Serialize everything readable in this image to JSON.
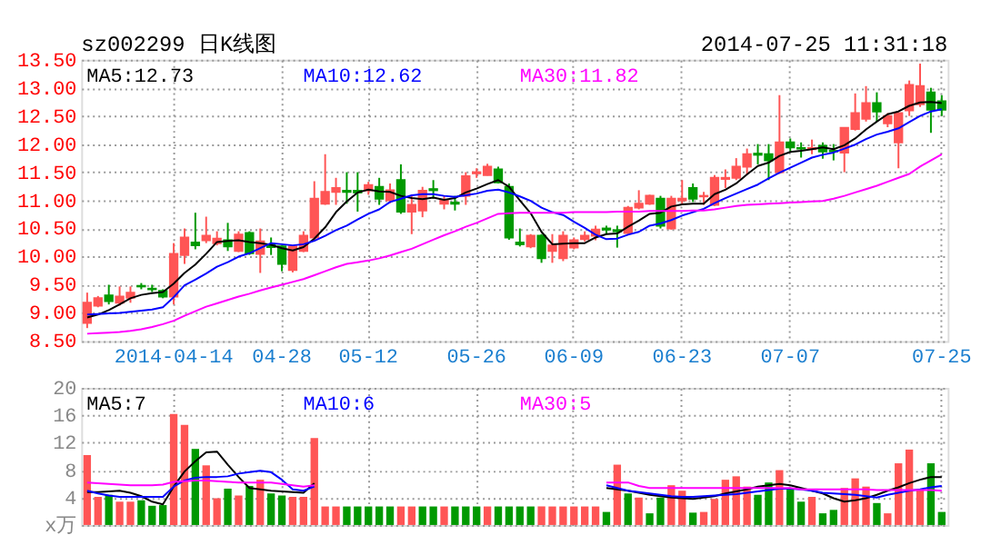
{
  "chart_data": [
    {
      "type": "candlestick",
      "title": "sz002299 日K线图",
      "annotations": [
        "2014-07-25 11:31:18"
      ],
      "categories": [
        null,
        null,
        null,
        null,
        null,
        null,
        null,
        null,
        "2014-04-14",
        null,
        null,
        null,
        null,
        null,
        null,
        null,
        null,
        null,
        "04-28",
        null,
        null,
        null,
        null,
        null,
        null,
        null,
        "05-12",
        null,
        null,
        null,
        null,
        null,
        null,
        null,
        null,
        null,
        "05-26",
        null,
        null,
        null,
        null,
        null,
        null,
        null,
        null,
        "06-09",
        null,
        null,
        null,
        null,
        null,
        null,
        null,
        null,
        null,
        "06-23",
        null,
        null,
        null,
        null,
        null,
        null,
        null,
        null,
        null,
        "07-07",
        null,
        null,
        null,
        null,
        null,
        null,
        null,
        null,
        null,
        null,
        null,
        null,
        null,
        "07-25"
      ],
      "ohlc": [
        [
          8.82,
          9.36,
          8.73,
          9.18
        ],
        [
          9.13,
          9.3,
          9.1,
          9.26
        ],
        [
          9.31,
          9.5,
          9.15,
          9.21
        ],
        [
          9.18,
          9.47,
          9.13,
          9.29
        ],
        [
          9.27,
          9.47,
          9.18,
          9.36
        ],
        [
          9.48,
          9.53,
          9.42,
          9.47
        ],
        [
          9.43,
          9.5,
          9.37,
          9.42
        ],
        [
          9.39,
          9.42,
          9.26,
          9.29
        ],
        [
          9.29,
          10.24,
          9.15,
          10.05
        ],
        [
          10.03,
          10.5,
          9.87,
          10.34
        ],
        [
          10.25,
          10.78,
          10.13,
          10.2
        ],
        [
          10.29,
          10.71,
          10.24,
          10.37
        ],
        [
          10.24,
          10.45,
          10.2,
          10.32
        ],
        [
          10.29,
          10.6,
          10.1,
          10.18
        ],
        [
          10.1,
          10.45,
          10.08,
          10.39
        ],
        [
          10.42,
          10.45,
          10.03,
          10.06
        ],
        [
          10.05,
          10.5,
          9.71,
          10.27
        ],
        [
          10.22,
          10.34,
          10.03,
          10.17
        ],
        [
          10.18,
          10.2,
          9.74,
          9.87
        ],
        [
          9.76,
          10.2,
          9.72,
          10.18
        ],
        [
          10.1,
          10.45,
          10.08,
          10.37
        ],
        [
          10.34,
          11.34,
          10.29,
          11.03
        ],
        [
          10.94,
          11.82,
          10.92,
          11.15
        ],
        [
          11.15,
          11.4,
          10.92,
          11.22
        ],
        [
          11.17,
          11.5,
          10.94,
          11.15
        ],
        [
          11.17,
          11.5,
          10.8,
          11.14
        ],
        [
          11.18,
          11.33,
          11.1,
          11.27
        ],
        [
          11.24,
          11.4,
          10.92,
          11.03
        ],
        [
          11.0,
          11.3,
          10.95,
          11.18
        ],
        [
          11.36,
          11.64,
          10.76,
          10.8
        ],
        [
          10.8,
          11.08,
          10.4,
          10.92
        ],
        [
          10.82,
          11.24,
          10.7,
          11.17
        ],
        [
          11.2,
          11.36,
          11.03,
          11.18
        ],
        [
          10.94,
          11.08,
          10.84,
          11.0
        ],
        [
          10.96,
          11.08,
          10.82,
          10.94
        ],
        [
          11.08,
          11.5,
          10.92,
          11.43
        ],
        [
          11.48,
          11.57,
          11.4,
          11.5
        ],
        [
          11.45,
          11.65,
          11.44,
          11.6
        ],
        [
          11.55,
          11.6,
          11.3,
          11.32
        ],
        [
          11.24,
          11.3,
          10.3,
          10.34
        ],
        [
          10.25,
          10.5,
          10.18,
          10.22
        ],
        [
          10.18,
          10.4,
          10.15,
          10.37
        ],
        [
          10.37,
          10.4,
          9.89,
          9.97
        ],
        [
          10.1,
          10.4,
          9.89,
          10.2
        ],
        [
          9.97,
          10.45,
          9.92,
          10.37
        ],
        [
          10.16,
          10.34,
          10.13,
          10.29
        ],
        [
          10.31,
          10.45,
          10.27,
          10.37
        ],
        [
          10.37,
          10.55,
          10.29,
          10.48
        ],
        [
          10.5,
          10.55,
          10.4,
          10.48
        ],
        [
          10.47,
          10.55,
          10.16,
          10.45
        ],
        [
          10.42,
          10.9,
          10.4,
          10.87
        ],
        [
          10.87,
          11.18,
          10.84,
          10.94
        ],
        [
          10.94,
          11.1,
          10.92,
          11.08
        ],
        [
          11.03,
          11.08,
          10.5,
          10.55
        ],
        [
          10.5,
          11.08,
          10.48,
          11.03
        ],
        [
          11.0,
          11.36,
          10.92,
          11.03
        ],
        [
          11.22,
          11.3,
          10.97,
          11.03
        ],
        [
          11.07,
          11.15,
          10.92,
          11.08
        ],
        [
          10.92,
          11.45,
          10.9,
          11.4
        ],
        [
          11.38,
          11.55,
          11.22,
          11.4
        ],
        [
          11.4,
          11.75,
          11.36,
          11.6
        ],
        [
          11.6,
          11.92,
          11.46,
          11.82
        ],
        [
          11.83,
          12.0,
          11.64,
          11.81
        ],
        [
          11.82,
          12.0,
          11.36,
          11.71
        ],
        [
          11.5,
          12.87,
          11.47,
          12.03
        ],
        [
          12.03,
          12.1,
          11.87,
          11.94
        ],
        [
          11.93,
          12.03,
          11.76,
          11.92
        ],
        [
          11.91,
          12.08,
          11.82,
          11.93
        ],
        [
          11.97,
          12.03,
          11.74,
          11.87
        ],
        [
          11.88,
          12.0,
          11.71,
          11.87
        ],
        [
          11.85,
          12.29,
          11.5,
          12.29
        ],
        [
          12.27,
          12.9,
          12.24,
          12.55
        ],
        [
          12.45,
          13.03,
          12.4,
          12.73
        ],
        [
          12.73,
          12.92,
          12.4,
          12.58
        ],
        [
          12.37,
          12.55,
          12.3,
          12.5
        ],
        [
          12.03,
          12.55,
          11.57,
          12.55
        ],
        [
          12.6,
          13.13,
          12.5,
          13.05
        ],
        [
          12.71,
          13.43,
          12.66,
          13.03
        ],
        [
          12.92,
          13.0,
          12.2,
          12.61
        ],
        [
          12.76,
          12.87,
          12.5,
          12.61
        ]
      ],
      "colors": [
        "#ff5555",
        "#ff5555",
        "#009900",
        "#ff5555",
        "#ff5555",
        "#009900",
        "#009900",
        "#009900",
        "#ff5555",
        "#ff5555",
        "#009900",
        "#ff5555",
        "#ff5555",
        "#009900",
        "#ff5555",
        "#009900",
        "#ff5555",
        "#009900",
        "#009900",
        "#ff5555",
        "#ff5555",
        "#ff5555",
        "#ff5555",
        "#ff5555",
        "#009900",
        "#009900",
        "#ff5555",
        "#009900",
        "#ff5555",
        "#009900",
        "#ff5555",
        "#ff5555",
        "#009900",
        "#ff5555",
        "#009900",
        "#ff5555",
        "#ff5555",
        "#ff5555",
        "#009900",
        "#009900",
        "#009900",
        "#ff5555",
        "#009900",
        "#ff5555",
        "#ff5555",
        "#ff5555",
        "#ff5555",
        "#ff5555",
        "#009900",
        "#009900",
        "#ff5555",
        "#ff5555",
        "#ff5555",
        "#009900",
        "#ff5555",
        "#ff5555",
        "#009900",
        "#ff5555",
        "#ff5555",
        "#ff5555",
        "#ff5555",
        "#ff5555",
        "#009900",
        "#009900",
        "#ff5555",
        "#009900",
        "#009900",
        "#ff5555",
        "#009900",
        "#009900",
        "#ff5555",
        "#ff5555",
        "#ff5555",
        "#009900",
        "#ff5555",
        "#ff5555",
        "#ff5555",
        "#ff5555",
        "#009900",
        "#009900"
      ],
      "series": [
        {
          "name": "MA5:12.73",
          "type": "line",
          "color": "#000000",
          "values": [
            8.92,
            8.97,
            9.05,
            9.15,
            9.26,
            9.32,
            9.35,
            9.37,
            9.52,
            9.71,
            9.86,
            10.05,
            10.26,
            10.28,
            10.29,
            10.26,
            10.24,
            10.21,
            10.15,
            10.11,
            10.17,
            10.32,
            10.52,
            10.79,
            10.98,
            11.14,
            11.19,
            11.16,
            11.15,
            11.08,
            11.04,
            11.02,
            11.05,
            11.01,
            11.04,
            11.14,
            11.21,
            11.29,
            11.36,
            11.24,
            11.0,
            10.77,
            10.44,
            10.22,
            10.23,
            10.24,
            10.24,
            10.34,
            10.4,
            10.41,
            10.53,
            10.64,
            10.76,
            10.78,
            10.89,
            10.93,
            10.94,
            10.94,
            11.11,
            11.19,
            11.3,
            11.46,
            11.61,
            11.67,
            11.79,
            11.86,
            11.88,
            11.91,
            11.94,
            11.91,
            11.98,
            12.1,
            12.26,
            12.4,
            12.53,
            12.58,
            12.68,
            12.74,
            12.75,
            12.73
          ]
        },
        {
          "name": "MA10:12.62",
          "type": "line",
          "color": "#0000ff",
          "values": [
            8.97,
            8.98,
            8.99,
            9.0,
            9.02,
            9.04,
            9.06,
            9.1,
            9.28,
            9.49,
            9.59,
            9.7,
            9.82,
            9.9,
            10.0,
            10.06,
            10.15,
            10.24,
            10.22,
            10.2,
            10.22,
            10.28,
            10.37,
            10.47,
            10.55,
            10.66,
            10.76,
            10.84,
            10.97,
            11.03,
            11.09,
            11.11,
            11.11,
            11.08,
            11.06,
            11.09,
            11.12,
            11.17,
            11.19,
            11.14,
            11.07,
            10.99,
            10.87,
            10.79,
            10.74,
            10.62,
            10.51,
            10.39,
            10.31,
            10.32,
            10.39,
            10.44,
            10.55,
            10.59,
            10.65,
            10.73,
            10.79,
            10.85,
            10.95,
            11.04,
            11.12,
            11.2,
            11.28,
            11.39,
            11.49,
            11.58,
            11.67,
            11.76,
            11.81,
            11.85,
            11.92,
            11.99,
            12.09,
            12.17,
            12.22,
            12.28,
            12.39,
            12.5,
            12.58,
            12.62
          ]
        },
        {
          "name": "MA30:11.82",
          "type": "line",
          "color": "#ff00ff",
          "values": [
            8.63,
            8.64,
            8.65,
            8.66,
            8.68,
            8.71,
            8.75,
            8.8,
            8.86,
            8.95,
            9.03,
            9.11,
            9.17,
            9.23,
            9.29,
            9.34,
            9.4,
            9.45,
            9.5,
            9.55,
            9.6,
            9.67,
            9.74,
            9.81,
            9.87,
            9.9,
            9.93,
            9.97,
            10.02,
            10.08,
            10.14,
            10.22,
            10.3,
            10.38,
            10.45,
            10.53,
            10.6,
            10.68,
            10.76,
            10.77,
            10.78,
            10.78,
            10.78,
            10.78,
            10.78,
            10.79,
            10.79,
            10.79,
            10.79,
            10.8,
            10.8,
            10.8,
            10.81,
            10.81,
            10.81,
            10.81,
            10.82,
            10.82,
            10.84,
            10.87,
            10.9,
            10.92,
            10.93,
            10.94,
            10.95,
            10.96,
            10.97,
            10.98,
            10.99,
            11.03,
            11.08,
            11.14,
            11.2,
            11.26,
            11.33,
            11.4,
            11.47,
            11.6,
            11.71,
            11.82
          ]
        }
      ],
      "ylim": [
        8.5,
        13.5
      ],
      "yticks": [
        {
          "value": 8.5,
          "label": "8.50"
        },
        {
          "value": 9,
          "label": "9.00"
        },
        {
          "value": 9.5,
          "label": "9.50"
        },
        {
          "value": 10,
          "label": "10.00"
        },
        {
          "value": 10.5,
          "label": "10.50"
        },
        {
          "value": 11,
          "label": "11.00"
        },
        {
          "value": 11.5,
          "label": "11.50"
        },
        {
          "value": 12,
          "label": "12.00"
        },
        {
          "value": 12.5,
          "label": "12.50"
        },
        {
          "value": 13,
          "label": "13.00"
        },
        {
          "value": 13.5,
          "label": "13.50"
        }
      ],
      "grid": true,
      "legend": "top left"
    },
    {
      "type": "bar",
      "tick_labels": "y",
      "categories": [
        null,
        null,
        null,
        null,
        null,
        null,
        null,
        null,
        null,
        null,
        null,
        null,
        null,
        null,
        null,
        null,
        null,
        null,
        null,
        null,
        null,
        null,
        null,
        null,
        null,
        null,
        null,
        null,
        null,
        null,
        null,
        null,
        null,
        null,
        null,
        null,
        null,
        null,
        null,
        null,
        null,
        null,
        null,
        null,
        null,
        null,
        null,
        null,
        null,
        null,
        null,
        null,
        null,
        null,
        null,
        null,
        null,
        null,
        null,
        null,
        null,
        null,
        null,
        null,
        null,
        null,
        null,
        null,
        null,
        null,
        null,
        null,
        null,
        null,
        null,
        null,
        null,
        null,
        null,
        null
      ],
      "values": [
        10.2,
        4.1,
        4.4,
        3.4,
        3.4,
        3.6,
        2.8,
        2.9,
        16.2,
        14.6,
        11.1,
        8.7,
        3.9,
        5.3,
        4.3,
        5.7,
        6.6,
        4.6,
        4.3,
        4.1,
        4.1,
        12.7,
        2.7,
        2.7,
        2.7,
        2.7,
        2.7,
        2.7,
        2.7,
        2.7,
        2.7,
        2.7,
        2.7,
        2.7,
        2.7,
        2.7,
        2.7,
        2.7,
        2.7,
        2.7,
        2.7,
        2.7,
        2.7,
        2.7,
        2.7,
        2.7,
        2.7,
        2.7,
        1.9,
        8.8,
        4.6,
        4.0,
        1.7,
        4.0,
        5.8,
        5.0,
        1.8,
        1.9,
        3.8,
        6.6,
        7.1,
        5.6,
        4.4,
        6.2,
        8.0,
        5.2,
        3.4,
        4.1,
        1.7,
        2.2,
        5.4,
        6.8,
        5.6,
        3.2,
        1.7,
        9.0,
        11.0,
        5.2,
        9.0,
        1.9
      ],
      "colors": [
        "#ff5555",
        "#ff5555",
        "#009900",
        "#ff5555",
        "#ff5555",
        "#009900",
        "#009900",
        "#009900",
        "#ff5555",
        "#ff5555",
        "#009900",
        "#ff5555",
        "#ff5555",
        "#009900",
        "#ff5555",
        "#009900",
        "#ff5555",
        "#009900",
        "#009900",
        "#ff5555",
        "#ff5555",
        "#ff5555",
        "#ff5555",
        "#ff5555",
        "#009900",
        "#009900",
        "#009900",
        "#009900",
        "#009900",
        "#ff5555",
        "#ff5555",
        "#009900",
        "#009900",
        "#ff5555",
        "#009900",
        "#009900",
        "#009900",
        "#ff5555",
        "#009900",
        "#009900",
        "#009900",
        "#009900",
        "#ff5555",
        "#ff5555",
        "#ff5555",
        "#ff5555",
        "#ff5555",
        "#ff5555",
        "#009900",
        "#ff5555",
        "#009900",
        "#ff5555",
        "#009900",
        "#009900",
        "#ff5555",
        "#ff5555",
        "#009900",
        "#ff5555",
        "#ff5555",
        "#ff5555",
        "#ff5555",
        "#ff5555",
        "#009900",
        "#009900",
        "#ff5555",
        "#009900",
        "#009900",
        "#ff5555",
        "#009900",
        "#009900",
        "#ff5555",
        "#ff5555",
        "#ff5555",
        "#009900",
        "#ff5555",
        "#ff5555",
        "#ff5555",
        "#ff5555",
        "#009900",
        "#009900"
      ],
      "series": [
        {
          "name": "MA5:7",
          "type": "line",
          "color": "#000000",
          "values": [
            4.8,
            4.8,
            4.9,
            5.0,
            4.7,
            4.2,
            3.4,
            3.0,
            5.6,
            7.8,
            9.3,
            10.6,
            10.7,
            8.8,
            7.0,
            5.4,
            5.2,
            5.0,
            4.9,
            4.8,
            4.7,
            6.1,
            null,
            null,
            null,
            null,
            null,
            null,
            null,
            null,
            null,
            null,
            null,
            null,
            null,
            null,
            null,
            null,
            null,
            null,
            null,
            null,
            null,
            null,
            null,
            null,
            null,
            null,
            5.4,
            5.2,
            5.0,
            4.7,
            4.4,
            4.2,
            4.0,
            3.9,
            3.8,
            4.0,
            4.2,
            4.6,
            4.9,
            5.2,
            5.6,
            5.8,
            6.0,
            5.8,
            5.4,
            5.0,
            4.6,
            3.9,
            3.4,
            3.6,
            3.9,
            4.4,
            5.0,
            5.5,
            6.1,
            6.6,
            7.0,
            7.0
          ]
        },
        {
          "name": "MA10:6",
          "type": "line",
          "color": "#0000ff",
          "values": [
            5.0,
            4.6,
            4.3,
            4.1,
            4.1,
            4.1,
            4.1,
            4.1,
            5.6,
            6.5,
            6.9,
            7.0,
            7.0,
            7.1,
            7.5,
            7.7,
            7.9,
            7.7,
            6.6,
            5.2,
            5.0,
            5.6,
            null,
            null,
            null,
            null,
            null,
            null,
            null,
            null,
            null,
            null,
            null,
            null,
            null,
            null,
            null,
            null,
            null,
            null,
            null,
            null,
            null,
            null,
            null,
            null,
            null,
            null,
            5.8,
            5.4,
            5.0,
            4.8,
            4.6,
            4.4,
            4.2,
            4.1,
            4.1,
            4.2,
            4.3,
            4.4,
            4.5,
            4.7,
            4.9,
            5.1,
            5.3,
            5.3,
            5.2,
            5.0,
            4.7,
            4.6,
            4.5,
            4.4,
            4.2,
            4.0,
            4.4,
            4.7,
            5.0,
            5.2,
            5.5,
            5.7
          ]
        },
        {
          "name": "MA30:5",
          "type": "line",
          "color": "#ff00ff",
          "values": [
            6.2,
            6.1,
            6.0,
            5.9,
            5.8,
            5.8,
            5.8,
            5.9,
            6.3,
            6.4,
            6.5,
            6.5,
            6.4,
            6.3,
            6.2,
            6.2,
            6.2,
            6.2,
            6.0,
            5.8,
            5.6,
            5.8,
            null,
            null,
            null,
            null,
            null,
            null,
            null,
            null,
            null,
            null,
            null,
            null,
            null,
            null,
            null,
            null,
            null,
            null,
            null,
            null,
            null,
            null,
            null,
            null,
            null,
            null,
            6.2,
            6.2,
            6.2,
            5.7,
            5.4,
            5.4,
            5.4,
            5.4,
            5.4,
            5.4,
            5.4,
            5.4,
            5.4,
            5.4,
            5.4,
            5.4,
            5.4,
            5.4,
            5.2,
            5.2,
            5.2,
            5.2,
            5.2,
            5.2,
            5.2,
            5.1,
            5.1,
            5.1,
            5.1,
            5.1,
            5.1,
            5.0
          ]
        }
      ],
      "ylim": [
        0,
        20
      ],
      "yticks": [
        {
          "value": 0,
          "label": "x万"
        },
        4,
        8,
        12,
        16,
        20
      ],
      "grid": true,
      "legend": "top left"
    }
  ]
}
